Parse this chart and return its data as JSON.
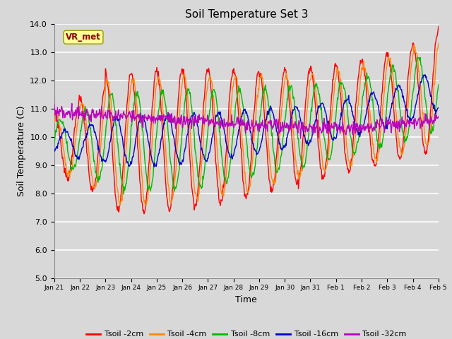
{
  "title": "Soil Temperature Set 3",
  "xlabel": "Time",
  "ylabel": "Soil Temperature (C)",
  "ylim": [
    5.0,
    14.0
  ],
  "yticks": [
    5.0,
    6.0,
    7.0,
    8.0,
    9.0,
    10.0,
    11.0,
    12.0,
    13.0,
    14.0
  ],
  "fig_bg": "#d8d8d8",
  "plot_bg": "#d8d8d8",
  "grid_color": "#ffffff",
  "annotation_text": "VR_met",
  "annotation_bg": "#ffff99",
  "annotation_border": "#999900",
  "series_colors": [
    "#ff0000",
    "#ff8800",
    "#00bb00",
    "#0000cc",
    "#bb00bb"
  ],
  "series_labels": [
    "Tsoil -2cm",
    "Tsoil -4cm",
    "Tsoil -8cm",
    "Tsoil -16cm",
    "Tsoil -32cm"
  ],
  "xtick_labels": [
    "Jan 21",
    "Jan 22",
    "Jan 23",
    "Jan 24",
    "Jan 25",
    "Jan 26",
    "Jan 27",
    "Jan 28",
    "Jan 29",
    "Jan 30",
    "Jan 31",
    "Feb 1",
    "Feb 2",
    "Feb 3",
    "Feb 4",
    "Feb 5"
  ],
  "n_days": 15,
  "n_points": 720
}
